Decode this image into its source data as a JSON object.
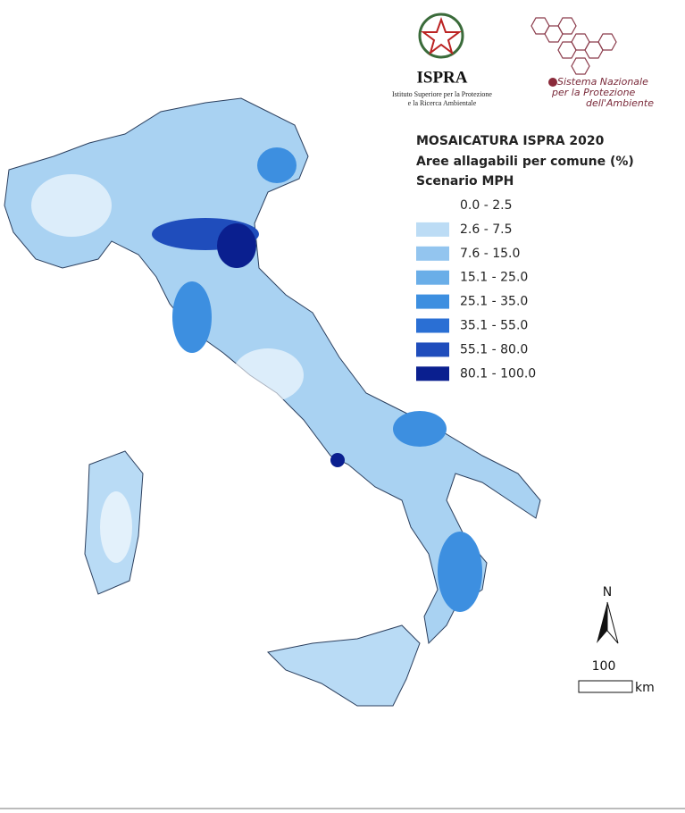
{
  "header": {
    "ispra": {
      "name": "ISPRA",
      "subtitle_lines": [
        "Istituto Superiore per la Protezione",
        "e la Ricerca Ambientale"
      ]
    },
    "snpa": {
      "lines": [
        "Sistema Nazionale",
        "per la Protezione",
        "dell'Ambiente"
      ]
    }
  },
  "legend": {
    "title_lines": [
      "MOSAICATURA ISPRA 2020",
      "Aree allagabili per comune (%)",
      "Scenario MPH"
    ],
    "classes": [
      {
        "label": "0.0 - 2.5",
        "color": "#ffffff"
      },
      {
        "label": "2.6 - 7.5",
        "color": "#bcdcf5"
      },
      {
        "label": "7.6 - 15.0",
        "color": "#93c5ef"
      },
      {
        "label": "15.1 - 25.0",
        "color": "#6aaee8"
      },
      {
        "label": "25.1 - 35.0",
        "color": "#3d8fe0"
      },
      {
        "label": "35.1 - 55.0",
        "color": "#2a6fd4"
      },
      {
        "label": "55.1 - 80.0",
        "color": "#1f4dbc"
      },
      {
        "label": "80.1 - 100.0",
        "color": "#0a1f8f"
      }
    ]
  },
  "north_arrow": {
    "label": "N"
  },
  "scale_bar": {
    "distance": "100",
    "unit": "km"
  }
}
